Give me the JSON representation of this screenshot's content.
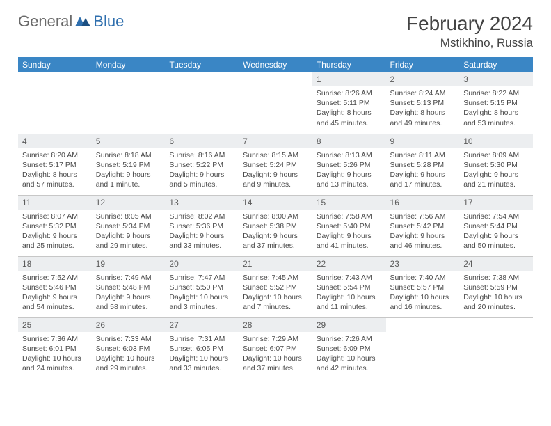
{
  "logo": {
    "general": "General",
    "blue": "Blue"
  },
  "title": "February 2024",
  "location": "Mstikhino, Russia",
  "colors": {
    "header_bg": "#3a86c5",
    "header_text": "#ffffff",
    "daynum_bg": "#eceef0",
    "body_text": "#4a4a4a",
    "border": "#c7c7c7",
    "logo_grey": "#6a6a6a",
    "logo_blue": "#2f6fae"
  },
  "weekdays": [
    "Sunday",
    "Monday",
    "Tuesday",
    "Wednesday",
    "Thursday",
    "Friday",
    "Saturday"
  ],
  "weeks": [
    [
      {
        "n": "",
        "lines": [
          "",
          "",
          "",
          ""
        ]
      },
      {
        "n": "",
        "lines": [
          "",
          "",
          "",
          ""
        ]
      },
      {
        "n": "",
        "lines": [
          "",
          "",
          "",
          ""
        ]
      },
      {
        "n": "",
        "lines": [
          "",
          "",
          "",
          ""
        ]
      },
      {
        "n": "1",
        "lines": [
          "Sunrise: 8:26 AM",
          "Sunset: 5:11 PM",
          "Daylight: 8 hours",
          "and 45 minutes."
        ]
      },
      {
        "n": "2",
        "lines": [
          "Sunrise: 8:24 AM",
          "Sunset: 5:13 PM",
          "Daylight: 8 hours",
          "and 49 minutes."
        ]
      },
      {
        "n": "3",
        "lines": [
          "Sunrise: 8:22 AM",
          "Sunset: 5:15 PM",
          "Daylight: 8 hours",
          "and 53 minutes."
        ]
      }
    ],
    [
      {
        "n": "4",
        "lines": [
          "Sunrise: 8:20 AM",
          "Sunset: 5:17 PM",
          "Daylight: 8 hours",
          "and 57 minutes."
        ]
      },
      {
        "n": "5",
        "lines": [
          "Sunrise: 8:18 AM",
          "Sunset: 5:19 PM",
          "Daylight: 9 hours",
          "and 1 minute."
        ]
      },
      {
        "n": "6",
        "lines": [
          "Sunrise: 8:16 AM",
          "Sunset: 5:22 PM",
          "Daylight: 9 hours",
          "and 5 minutes."
        ]
      },
      {
        "n": "7",
        "lines": [
          "Sunrise: 8:15 AM",
          "Sunset: 5:24 PM",
          "Daylight: 9 hours",
          "and 9 minutes."
        ]
      },
      {
        "n": "8",
        "lines": [
          "Sunrise: 8:13 AM",
          "Sunset: 5:26 PM",
          "Daylight: 9 hours",
          "and 13 minutes."
        ]
      },
      {
        "n": "9",
        "lines": [
          "Sunrise: 8:11 AM",
          "Sunset: 5:28 PM",
          "Daylight: 9 hours",
          "and 17 minutes."
        ]
      },
      {
        "n": "10",
        "lines": [
          "Sunrise: 8:09 AM",
          "Sunset: 5:30 PM",
          "Daylight: 9 hours",
          "and 21 minutes."
        ]
      }
    ],
    [
      {
        "n": "11",
        "lines": [
          "Sunrise: 8:07 AM",
          "Sunset: 5:32 PM",
          "Daylight: 9 hours",
          "and 25 minutes."
        ]
      },
      {
        "n": "12",
        "lines": [
          "Sunrise: 8:05 AM",
          "Sunset: 5:34 PM",
          "Daylight: 9 hours",
          "and 29 minutes."
        ]
      },
      {
        "n": "13",
        "lines": [
          "Sunrise: 8:02 AM",
          "Sunset: 5:36 PM",
          "Daylight: 9 hours",
          "and 33 minutes."
        ]
      },
      {
        "n": "14",
        "lines": [
          "Sunrise: 8:00 AM",
          "Sunset: 5:38 PM",
          "Daylight: 9 hours",
          "and 37 minutes."
        ]
      },
      {
        "n": "15",
        "lines": [
          "Sunrise: 7:58 AM",
          "Sunset: 5:40 PM",
          "Daylight: 9 hours",
          "and 41 minutes."
        ]
      },
      {
        "n": "16",
        "lines": [
          "Sunrise: 7:56 AM",
          "Sunset: 5:42 PM",
          "Daylight: 9 hours",
          "and 46 minutes."
        ]
      },
      {
        "n": "17",
        "lines": [
          "Sunrise: 7:54 AM",
          "Sunset: 5:44 PM",
          "Daylight: 9 hours",
          "and 50 minutes."
        ]
      }
    ],
    [
      {
        "n": "18",
        "lines": [
          "Sunrise: 7:52 AM",
          "Sunset: 5:46 PM",
          "Daylight: 9 hours",
          "and 54 minutes."
        ]
      },
      {
        "n": "19",
        "lines": [
          "Sunrise: 7:49 AM",
          "Sunset: 5:48 PM",
          "Daylight: 9 hours",
          "and 58 minutes."
        ]
      },
      {
        "n": "20",
        "lines": [
          "Sunrise: 7:47 AM",
          "Sunset: 5:50 PM",
          "Daylight: 10 hours",
          "and 3 minutes."
        ]
      },
      {
        "n": "21",
        "lines": [
          "Sunrise: 7:45 AM",
          "Sunset: 5:52 PM",
          "Daylight: 10 hours",
          "and 7 minutes."
        ]
      },
      {
        "n": "22",
        "lines": [
          "Sunrise: 7:43 AM",
          "Sunset: 5:54 PM",
          "Daylight: 10 hours",
          "and 11 minutes."
        ]
      },
      {
        "n": "23",
        "lines": [
          "Sunrise: 7:40 AM",
          "Sunset: 5:57 PM",
          "Daylight: 10 hours",
          "and 16 minutes."
        ]
      },
      {
        "n": "24",
        "lines": [
          "Sunrise: 7:38 AM",
          "Sunset: 5:59 PM",
          "Daylight: 10 hours",
          "and 20 minutes."
        ]
      }
    ],
    [
      {
        "n": "25",
        "lines": [
          "Sunrise: 7:36 AM",
          "Sunset: 6:01 PM",
          "Daylight: 10 hours",
          "and 24 minutes."
        ]
      },
      {
        "n": "26",
        "lines": [
          "Sunrise: 7:33 AM",
          "Sunset: 6:03 PM",
          "Daylight: 10 hours",
          "and 29 minutes."
        ]
      },
      {
        "n": "27",
        "lines": [
          "Sunrise: 7:31 AM",
          "Sunset: 6:05 PM",
          "Daylight: 10 hours",
          "and 33 minutes."
        ]
      },
      {
        "n": "28",
        "lines": [
          "Sunrise: 7:29 AM",
          "Sunset: 6:07 PM",
          "Daylight: 10 hours",
          "and 37 minutes."
        ]
      },
      {
        "n": "29",
        "lines": [
          "Sunrise: 7:26 AM",
          "Sunset: 6:09 PM",
          "Daylight: 10 hours",
          "and 42 minutes."
        ]
      },
      {
        "n": "",
        "lines": [
          "",
          "",
          "",
          ""
        ]
      },
      {
        "n": "",
        "lines": [
          "",
          "",
          "",
          ""
        ]
      }
    ]
  ]
}
